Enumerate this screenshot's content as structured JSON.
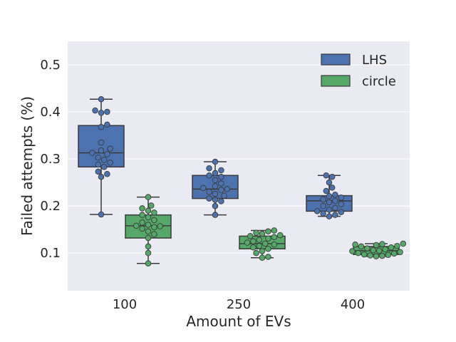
{
  "chart_data": {
    "type": "box",
    "xlabel": "Amount of EVs",
    "ylabel": "Failed attempts (%)",
    "categories": [
      "100",
      "250",
      "400"
    ],
    "ylim": [
      0.02,
      0.55
    ],
    "yticks": [
      0.1,
      0.2,
      0.3,
      0.4,
      0.5
    ],
    "ytick_labels": [
      "0.1",
      "0.2",
      "0.3",
      "0.4",
      "0.5"
    ],
    "grid": true,
    "legend_position": "top-right",
    "series": [
      {
        "name": "LHS",
        "color": "#4c72b0",
        "boxes": [
          {
            "min": 0.182,
            "q1": 0.283,
            "median": 0.313,
            "q3": 0.371,
            "max": 0.427,
            "points": [
              0.182,
              0.262,
              0.268,
              0.273,
              0.283,
              0.288,
              0.292,
              0.298,
              0.303,
              0.31,
              0.313,
              0.318,
              0.322,
              0.335,
              0.368,
              0.373,
              0.398,
              0.4,
              0.403,
              0.427
            ]
          },
          {
            "min": 0.181,
            "q1": 0.216,
            "median": 0.236,
            "q3": 0.265,
            "max": 0.294,
            "points": [
              0.181,
              0.2,
              0.21,
              0.213,
              0.216,
              0.222,
              0.226,
              0.23,
              0.234,
              0.236,
              0.238,
              0.242,
              0.248,
              0.255,
              0.262,
              0.265,
              0.27,
              0.276,
              0.28,
              0.294
            ]
          },
          {
            "min": 0.178,
            "q1": 0.189,
            "median": 0.211,
            "q3": 0.222,
            "max": 0.265,
            "points": [
              0.178,
              0.181,
              0.184,
              0.187,
              0.189,
              0.192,
              0.196,
              0.2,
              0.204,
              0.208,
              0.211,
              0.214,
              0.218,
              0.221,
              0.224,
              0.232,
              0.239,
              0.25,
              0.262,
              0.265
            ]
          }
        ]
      },
      {
        "name": "circle",
        "color": "#55a868",
        "boxes": [
          {
            "min": 0.078,
            "q1": 0.132,
            "median": 0.158,
            "q3": 0.181,
            "max": 0.219,
            "points": [
              0.078,
              0.1,
              0.114,
              0.132,
              0.14,
              0.146,
              0.152,
              0.155,
              0.157,
              0.158,
              0.16,
              0.165,
              0.17,
              0.176,
              0.181,
              0.186,
              0.19,
              0.195,
              0.201,
              0.219
            ]
          },
          {
            "min": 0.09,
            "q1": 0.109,
            "median": 0.12,
            "q3": 0.136,
            "max": 0.148,
            "points": [
              0.09,
              0.092,
              0.1,
              0.104,
              0.109,
              0.112,
              0.115,
              0.118,
              0.12,
              0.122,
              0.125,
              0.128,
              0.131,
              0.134,
              0.136,
              0.138,
              0.141,
              0.143,
              0.146,
              0.148
            ]
          },
          {
            "min": 0.093,
            "q1": 0.097,
            "median": 0.105,
            "q3": 0.114,
            "max": 0.12,
            "points": [
              0.093,
              0.094,
              0.095,
              0.096,
              0.097,
              0.099,
              0.1,
              0.102,
              0.104,
              0.105,
              0.106,
              0.108,
              0.11,
              0.112,
              0.114,
              0.115,
              0.117,
              0.118,
              0.119,
              0.12
            ]
          }
        ]
      }
    ]
  }
}
